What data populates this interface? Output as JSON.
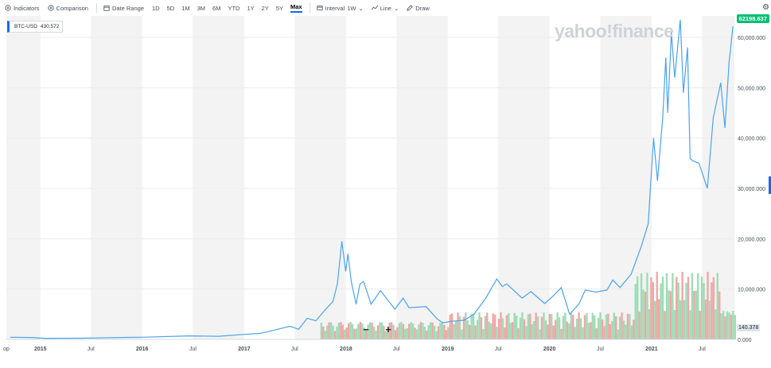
{
  "toolbar": {
    "indicators": "Indicators",
    "comparison": "Comparison",
    "date_range": "Date Range",
    "ranges": [
      "1D",
      "5D",
      "1M",
      "3M",
      "6M",
      "YTD",
      "1Y",
      "2Y",
      "5Y",
      "Max"
    ],
    "active_range": "Max",
    "interval": "Interval",
    "interval_value": "1W",
    "line": "Line",
    "draw": "Draw"
  },
  "legend": {
    "symbol": "BTC-USD",
    "value": "430.572"
  },
  "logo": "yahoo!finance",
  "last_price": "62198.637",
  "volume_badge": "140.378",
  "zoom": {
    "minus": "−",
    "plus": "+"
  },
  "colors": {
    "line": "#4aa3f0",
    "vol_up": "#9fdcb6",
    "vol_down": "#f3a6a6",
    "band": "#f3f3f3",
    "accent": "#0f69ff",
    "badge": "#00c073"
  },
  "chart_data": {
    "type": "line",
    "title": "",
    "series": [
      {
        "name": "BTC-USD",
        "points": [
          [
            "2014-09-15",
            430
          ],
          [
            "2014-12-01",
            380
          ],
          [
            "2015-01-15",
            220
          ],
          [
            "2015-06-01",
            230
          ],
          [
            "2015-11-05",
            400
          ],
          [
            "2016-01-01",
            430
          ],
          [
            "2016-06-15",
            700
          ],
          [
            "2016-10-01",
            620
          ],
          [
            "2017-01-01",
            1000
          ],
          [
            "2017-03-01",
            1200
          ],
          [
            "2017-05-15",
            2200
          ],
          [
            "2017-06-15",
            2600
          ],
          [
            "2017-07-15",
            2000
          ],
          [
            "2017-08-15",
            4200
          ],
          [
            "2017-09-15",
            3700
          ],
          [
            "2017-10-20",
            6000
          ],
          [
            "2017-11-15",
            7500
          ],
          [
            "2017-12-01",
            11000
          ],
          [
            "2017-12-17",
            19500
          ],
          [
            "2017-12-31",
            13500
          ],
          [
            "2018-01-08",
            17000
          ],
          [
            "2018-01-20",
            11500
          ],
          [
            "2018-02-06",
            7000
          ],
          [
            "2018-02-20",
            11000
          ],
          [
            "2018-03-05",
            11500
          ],
          [
            "2018-04-01",
            7000
          ],
          [
            "2018-05-05",
            9700
          ],
          [
            "2018-06-25",
            6000
          ],
          [
            "2018-07-25",
            8200
          ],
          [
            "2018-08-15",
            6300
          ],
          [
            "2018-10-15",
            6500
          ],
          [
            "2018-11-25",
            4000
          ],
          [
            "2018-12-15",
            3300
          ],
          [
            "2019-01-15",
            3600
          ],
          [
            "2019-03-01",
            3800
          ],
          [
            "2019-04-05",
            5000
          ],
          [
            "2019-05-15",
            8000
          ],
          [
            "2019-06-26",
            12000
          ],
          [
            "2019-07-15",
            10500
          ],
          [
            "2019-08-01",
            11000
          ],
          [
            "2019-09-25",
            8200
          ],
          [
            "2019-10-26",
            9500
          ],
          [
            "2019-12-15",
            7100
          ],
          [
            "2020-01-15",
            8700
          ],
          [
            "2020-02-12",
            10300
          ],
          [
            "2020-03-13",
            5000
          ],
          [
            "2020-04-15",
            7000
          ],
          [
            "2020-05-08",
            9800
          ],
          [
            "2020-06-15",
            9400
          ],
          [
            "2020-07-25",
            9800
          ],
          [
            "2020-08-15",
            11800
          ],
          [
            "2020-09-10",
            10300
          ],
          [
            "2020-10-20",
            13000
          ],
          [
            "2020-11-25",
            18500
          ],
          [
            "2020-12-20",
            23000
          ],
          [
            "2021-01-08",
            40000
          ],
          [
            "2021-01-22",
            31500
          ],
          [
            "2021-02-10",
            44000
          ],
          [
            "2021-02-21",
            56000
          ],
          [
            "2021-02-28",
            45000
          ],
          [
            "2021-03-13",
            61000
          ],
          [
            "2021-03-25",
            52000
          ],
          [
            "2021-04-14",
            63500
          ],
          [
            "2021-04-25",
            49000
          ],
          [
            "2021-05-10",
            58000
          ],
          [
            "2021-05-19",
            36000
          ],
          [
            "2021-05-28",
            35500
          ],
          [
            "2021-06-20",
            35000
          ],
          [
            "2021-07-20",
            30000
          ],
          [
            "2021-08-10",
            44000
          ],
          [
            "2021-09-06",
            51000
          ],
          [
            "2021-09-21",
            42000
          ],
          [
            "2021-10-06",
            55000
          ],
          [
            "2021-10-20",
            62198.637
          ]
        ]
      }
    ],
    "volume_badge_value": "140.378",
    "y_ticks": [
      {
        "value": 0,
        "label": "0.000"
      },
      {
        "value": 10000,
        "label": "10,000.000"
      },
      {
        "value": 20000,
        "label": "20,000.000"
      },
      {
        "value": 30000,
        "label": "30,000.000"
      },
      {
        "value": 40000,
        "label": "40,000.000"
      },
      {
        "value": 50000,
        "label": "50,000.000"
      },
      {
        "value": 60000,
        "label": "60,000.000"
      }
    ],
    "x_ticks": [
      {
        "date": "2014-09-01",
        "label": "op"
      },
      {
        "date": "2015-01-01",
        "label": "2015"
      },
      {
        "date": "2015-07-01",
        "label": "Jul"
      },
      {
        "date": "2016-01-01",
        "label": "2016"
      },
      {
        "date": "2016-07-01",
        "label": "Jul"
      },
      {
        "date": "2017-01-01",
        "label": "2017"
      },
      {
        "date": "2017-07-01",
        "label": "Jul"
      },
      {
        "date": "2018-01-01",
        "label": "2018"
      },
      {
        "date": "2018-07-01",
        "label": "Jul"
      },
      {
        "date": "2019-01-01",
        "label": "2019"
      },
      {
        "date": "2019-07-01",
        "label": "Jul"
      },
      {
        "date": "2020-01-01",
        "label": "2020"
      },
      {
        "date": "2020-07-01",
        "label": "Jul"
      },
      {
        "date": "2021-01-01",
        "label": "2021"
      },
      {
        "date": "2021-07-01",
        "label": "Jul"
      }
    ],
    "xlim": [
      "2014-09-01",
      "2021-10-25"
    ],
    "ylim": [
      0,
      63000
    ],
    "grid": true,
    "legend": "top-left"
  }
}
